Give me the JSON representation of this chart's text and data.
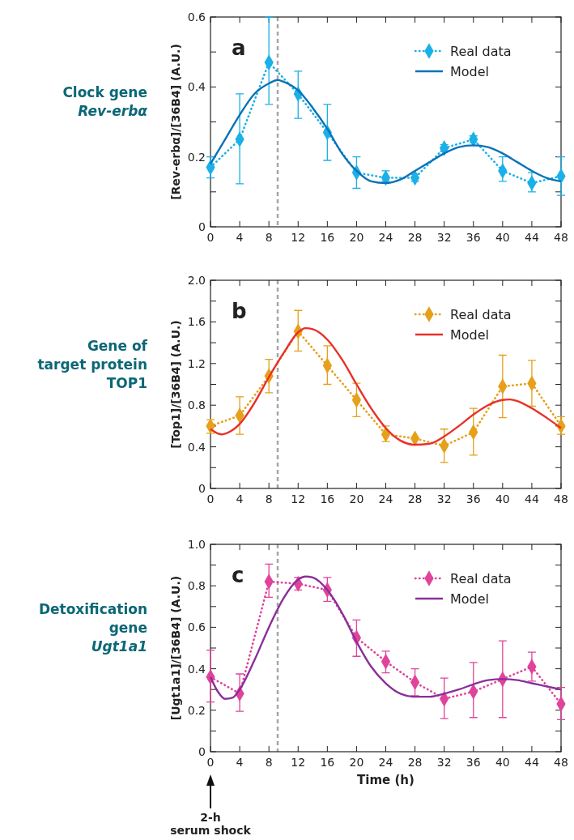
{
  "chart_data": [
    {
      "type": "line",
      "title": "a",
      "subtitle": "Clock gene\nRev-erbα",
      "ylabel": "[Rev-erbα]/[36B4] (A.U.)",
      "xlim": [
        0,
        48
      ],
      "xticks": [
        0,
        4,
        8,
        12,
        16,
        20,
        24,
        28,
        32,
        36,
        40,
        44,
        48
      ],
      "ylim": [
        0,
        0.6
      ],
      "yticks": [
        0,
        {
          "value": 0.1,
          "label": null
        },
        0.2,
        {
          "value": 0.3,
          "label": null
        },
        0.4,
        {
          "value": 0.5,
          "label": null
        },
        0.6
      ],
      "legend": "top right",
      "grid": false,
      "ref_lines": [
        {
          "axis": "x",
          "value": 9.2,
          "color": "#a6a6a6",
          "line_style": "dashed"
        }
      ],
      "series": [
        {
          "name": "Real data",
          "color": "#1ab0e8",
          "marker": "diamond",
          "line_style": "dotted",
          "x": [
            0,
            4,
            8,
            12,
            16,
            20,
            24,
            28,
            32,
            36,
            40,
            44,
            48
          ],
          "values": [
            0.17,
            0.25,
            0.47,
            0.38,
            0.27,
            0.155,
            0.14,
            0.14,
            0.225,
            0.25,
            0.16,
            0.125,
            0.145
          ],
          "errors": [
            [
              0.14,
              0.2
            ],
            [
              0.123,
              0.38
            ],
            [
              0.35,
              0.6
            ],
            [
              0.31,
              0.445
            ],
            [
              0.19,
              0.35
            ],
            [
              0.11,
              0.2
            ],
            [
              0.13,
              0.16
            ],
            [
              0.13,
              0.15
            ],
            [
              0.215,
              0.235
            ],
            [
              0.24,
              0.26
            ],
            [
              0.13,
              0.2
            ],
            [
              0.1,
              0.155
            ],
            [
              0.09,
              0.2
            ]
          ]
        },
        {
          "name": "Model",
          "color": "#0a72b8",
          "marker": "none",
          "line_style": "solid",
          "x": [
            0,
            2,
            4,
            6,
            8,
            9.2,
            10,
            12,
            14,
            16,
            18,
            20,
            22,
            24,
            26,
            28,
            30,
            32,
            34,
            36,
            38,
            40,
            42,
            44,
            46,
            48
          ],
          "values": [
            0.18,
            0.25,
            0.32,
            0.38,
            0.41,
            0.42,
            0.415,
            0.39,
            0.34,
            0.28,
            0.21,
            0.16,
            0.13,
            0.125,
            0.135,
            0.16,
            0.185,
            0.21,
            0.228,
            0.233,
            0.228,
            0.21,
            0.185,
            0.16,
            0.14,
            0.13
          ]
        }
      ]
    },
    {
      "type": "line",
      "title": "b",
      "subtitle": "Gene of\ntarget protein\nTOP1",
      "ylabel": "[Top1]/[36B4] (A.U.)",
      "xlim": [
        0,
        48
      ],
      "xticks": [
        0,
        4,
        8,
        12,
        16,
        20,
        24,
        28,
        32,
        36,
        40,
        44,
        48
      ],
      "ylim": [
        0,
        2
      ],
      "yticks": [
        0,
        {
          "value": 0.2,
          "label": null
        },
        0.4,
        {
          "value": 0.6,
          "label": null
        },
        0.8,
        {
          "value": 1.0,
          "label": null
        },
        1.2,
        {
          "value": 1.4,
          "label": null
        },
        1.6,
        {
          "value": 1.8,
          "label": null
        },
        {
          "value": 2,
          "label": "2.0"
        }
      ],
      "legend": "top right",
      "grid": false,
      "ref_lines": [
        {
          "axis": "x",
          "value": 9.2,
          "color": "#a6a6a6",
          "line_style": "dashed"
        }
      ],
      "series": [
        {
          "name": "Real data",
          "color": "#e6a01a",
          "marker": "diamond",
          "line_style": "dotted",
          "x": [
            0,
            4,
            8,
            12,
            16,
            20,
            24,
            28,
            32,
            36,
            40,
            44,
            48
          ],
          "values": [
            0.6,
            0.7,
            1.08,
            1.51,
            1.18,
            0.85,
            0.52,
            0.48,
            0.41,
            0.54,
            0.98,
            1.01,
            0.6
          ],
          "errors": [
            [
              0.53,
              0.66
            ],
            [
              0.52,
              0.88
            ],
            [
              0.92,
              1.24
            ],
            [
              1.32,
              1.71
            ],
            [
              1.0,
              1.37
            ],
            [
              0.69,
              1.01
            ],
            [
              0.45,
              0.6
            ],
            null,
            [
              0.25,
              0.57
            ],
            [
              0.32,
              0.77
            ],
            [
              0.68,
              1.28
            ],
            [
              0.79,
              1.23
            ],
            [
              0.52,
              0.69
            ]
          ]
        },
        {
          "name": "Model",
          "color": "#e8302a",
          "marker": "none",
          "line_style": "solid",
          "x": [
            0,
            1.5,
            3,
            4,
            6,
            8,
            10,
            12,
            13,
            14,
            16,
            18,
            20,
            22,
            24,
            26,
            28,
            30,
            32,
            34,
            36,
            38,
            40,
            41,
            42,
            44,
            46,
            48
          ],
          "values": [
            0.57,
            0.52,
            0.56,
            0.62,
            0.82,
            1.07,
            1.3,
            1.5,
            1.54,
            1.53,
            1.43,
            1.24,
            1.0,
            0.77,
            0.58,
            0.46,
            0.42,
            0.43,
            0.5,
            0.6,
            0.71,
            0.8,
            0.85,
            0.855,
            0.84,
            0.77,
            0.68,
            0.58
          ]
        }
      ]
    },
    {
      "type": "line",
      "title": "c",
      "subtitle": "Detoxification\ngene\nUgt1a1",
      "ylabel": "[Ugt1a1]/[36B4] (A.U.)",
      "xlabel": "Time (h)",
      "xlim": [
        0,
        48
      ],
      "xticks": [
        0,
        4,
        8,
        12,
        16,
        20,
        24,
        28,
        32,
        36,
        40,
        44,
        48
      ],
      "ylim": [
        0,
        1
      ],
      "yticks": [
        0,
        {
          "value": 0.1,
          "label": null
        },
        0.2,
        {
          "value": 0.3,
          "label": null
        },
        0.4,
        {
          "value": 0.5,
          "label": null
        },
        0.6,
        {
          "value": 0.7,
          "label": null
        },
        0.8,
        {
          "value": 0.9,
          "label": null
        },
        {
          "value": 1,
          "label": "1.0"
        }
      ],
      "legend": "top right",
      "grid": false,
      "ref_lines": [
        {
          "axis": "x",
          "value": 9.2,
          "color": "#a6a6a6",
          "line_style": "dashed"
        }
      ],
      "annotations": [
        "2-h\nserum shock"
      ],
      "series": [
        {
          "name": "Real data",
          "color": "#e0449a",
          "marker": "diamond",
          "line_style": "dotted",
          "x": [
            0,
            4,
            8,
            12,
            16,
            20,
            24,
            28,
            32,
            36,
            40,
            44,
            48
          ],
          "values": [
            0.36,
            0.28,
            0.82,
            0.81,
            0.78,
            0.55,
            0.435,
            0.335,
            0.255,
            0.29,
            0.35,
            0.41,
            0.23
          ],
          "errors": [
            [
              0.24,
              0.49
            ],
            [
              0.195,
              0.375
            ],
            [
              0.745,
              0.905
            ],
            [
              0.78,
              0.84
            ],
            [
              0.725,
              0.84
            ],
            [
              0.46,
              0.635
            ],
            [
              0.38,
              0.485
            ],
            [
              0.27,
              0.4
            ],
            [
              0.16,
              0.355
            ],
            [
              0.165,
              0.43
            ],
            [
              0.165,
              0.535
            ],
            [
              0.34,
              0.48
            ],
            [
              0.155,
              0.31
            ]
          ]
        },
        {
          "name": "Model",
          "color": "#8a2f9a",
          "marker": "none",
          "line_style": "solid",
          "x": [
            0,
            1,
            2,
            3,
            4,
            6,
            8,
            10,
            12,
            13,
            14,
            16,
            18,
            20,
            22,
            24,
            26,
            28,
            30,
            32,
            34,
            36,
            38,
            40,
            42,
            44,
            46,
            48
          ],
          "values": [
            0.36,
            0.29,
            0.255,
            0.26,
            0.3,
            0.44,
            0.6,
            0.74,
            0.83,
            0.845,
            0.84,
            0.78,
            0.67,
            0.53,
            0.41,
            0.33,
            0.28,
            0.265,
            0.265,
            0.28,
            0.3,
            0.325,
            0.345,
            0.35,
            0.345,
            0.33,
            0.315,
            0.3
          ]
        }
      ]
    }
  ]
}
